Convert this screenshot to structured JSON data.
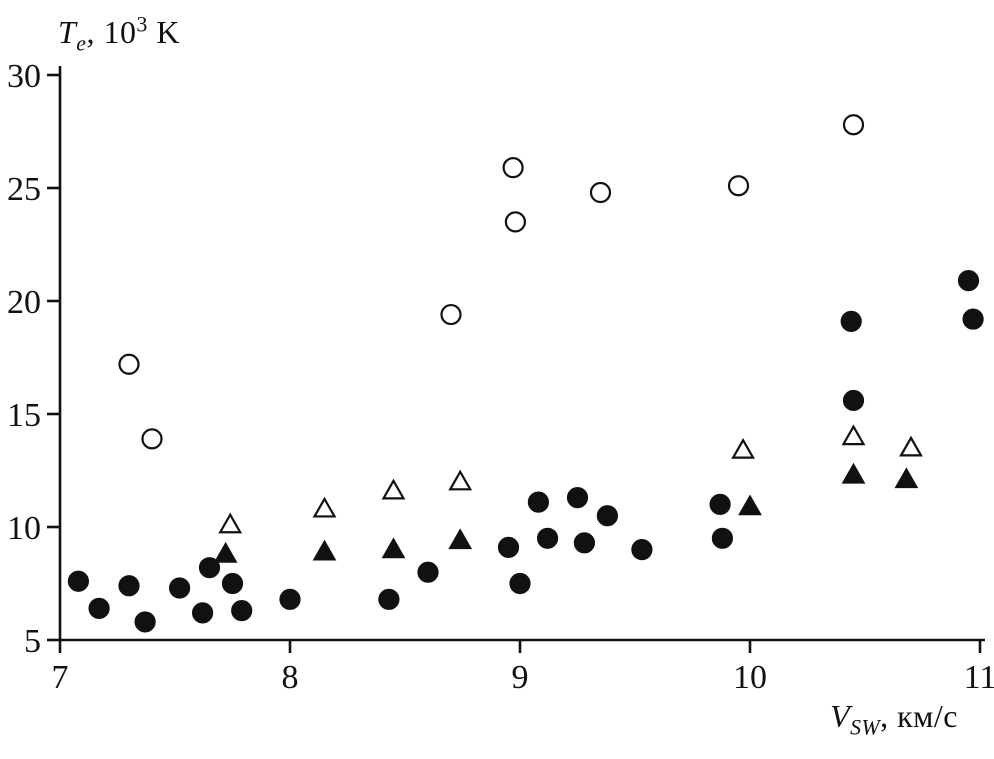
{
  "chart_data": {
    "type": "scatter",
    "title": "",
    "ylabel_parts": {
      "symbol": "T",
      "subscript": "e",
      "mid": ", 10",
      "exponent": "3",
      "unit": " K"
    },
    "xlabel_parts": {
      "symbol": "V",
      "subscript": "SW",
      "rest": ", км/с"
    },
    "xlim": [
      7,
      11
    ],
    "ylim": [
      5,
      30
    ],
    "x_ticks": [
      "7",
      "8",
      "9",
      "10",
      "11"
    ],
    "y_ticks": [
      "5",
      "10",
      "15",
      "20",
      "25",
      "30"
    ],
    "grid": false,
    "colors": {
      "marker_stroke": "#111111",
      "marker_fill_open": "#ffffff",
      "marker_fill_solid": "#111111",
      "axis": "#111111"
    },
    "series": [
      {
        "name": "open-circle",
        "marker": "circle",
        "fill": "open",
        "points": [
          [
            7.3,
            17.2
          ],
          [
            7.4,
            13.9
          ],
          [
            8.7,
            19.4
          ],
          [
            8.97,
            25.9
          ],
          [
            8.98,
            23.5
          ],
          [
            9.35,
            24.8
          ],
          [
            9.95,
            25.1
          ],
          [
            10.45,
            27.8
          ]
        ]
      },
      {
        "name": "open-triangle",
        "marker": "triangle",
        "fill": "open",
        "points": [
          [
            7.74,
            10.1
          ],
          [
            8.15,
            10.8
          ],
          [
            8.45,
            11.6
          ],
          [
            8.74,
            12.0
          ],
          [
            9.97,
            13.4
          ],
          [
            10.45,
            14.0
          ],
          [
            10.7,
            13.5
          ]
        ]
      },
      {
        "name": "filled-triangle",
        "marker": "triangle",
        "fill": "solid",
        "points": [
          [
            7.72,
            8.8
          ],
          [
            8.15,
            8.9
          ],
          [
            8.45,
            9.0
          ],
          [
            8.74,
            9.4
          ],
          [
            10.0,
            10.9
          ],
          [
            10.45,
            12.3
          ],
          [
            10.68,
            12.1
          ]
        ]
      },
      {
        "name": "filled-circle",
        "marker": "circle",
        "fill": "solid",
        "points": [
          [
            7.08,
            7.6
          ],
          [
            7.17,
            6.4
          ],
          [
            7.3,
            7.4
          ],
          [
            7.37,
            5.8
          ],
          [
            7.52,
            7.3
          ],
          [
            7.62,
            6.2
          ],
          [
            7.65,
            8.2
          ],
          [
            7.75,
            7.5
          ],
          [
            7.79,
            6.3
          ],
          [
            8.0,
            6.8
          ],
          [
            8.43,
            6.8
          ],
          [
            8.6,
            8.0
          ],
          [
            8.95,
            9.1
          ],
          [
            9.0,
            7.5
          ],
          [
            9.08,
            11.1
          ],
          [
            9.12,
            9.5
          ],
          [
            9.25,
            11.3
          ],
          [
            9.28,
            9.3
          ],
          [
            9.38,
            10.5
          ],
          [
            9.53,
            9.0
          ],
          [
            9.87,
            11.0
          ],
          [
            9.88,
            9.5
          ],
          [
            10.44,
            19.1
          ],
          [
            10.45,
            15.6
          ],
          [
            10.95,
            20.9
          ],
          [
            10.97,
            19.2
          ]
        ]
      }
    ]
  }
}
